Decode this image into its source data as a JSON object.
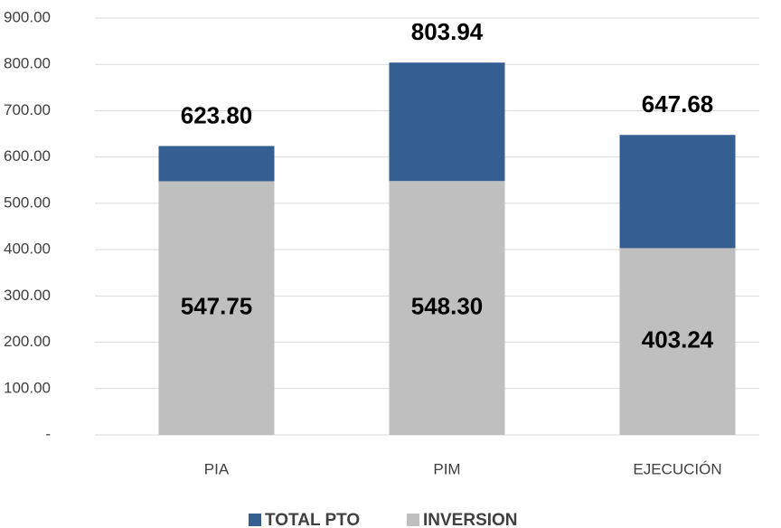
{
  "chart_data": {
    "type": "bar",
    "overlap": true,
    "categories": [
      "PIA",
      "PIM",
      "EJECUCIÓN"
    ],
    "series": [
      {
        "name": "TOTAL PTO",
        "color": "#365f91",
        "values": [
          623.8,
          803.94,
          647.68
        ],
        "value_labels": [
          "623.80",
          "803.94",
          "647.68"
        ]
      },
      {
        "name": "INVERSION",
        "color": "#bfbfbf",
        "values": [
          547.75,
          548.3,
          403.24
        ],
        "value_labels": [
          "547.75",
          "548.30",
          "403.24"
        ]
      }
    ],
    "ylim": [
      0,
      900
    ],
    "yticks": [
      {
        "value": 0,
        "label": "-"
      },
      {
        "value": 100,
        "label": "100.00"
      },
      {
        "value": 200,
        "label": "200.00"
      },
      {
        "value": 300,
        "label": "300.00"
      },
      {
        "value": 400,
        "label": "400.00"
      },
      {
        "value": 500,
        "label": "500.00"
      },
      {
        "value": 600,
        "label": "600.00"
      },
      {
        "value": 700,
        "label": "700.00"
      },
      {
        "value": 800,
        "label": "800.00"
      },
      {
        "value": 900,
        "label": "900.00"
      }
    ],
    "grid": true,
    "legend": "bottom"
  }
}
